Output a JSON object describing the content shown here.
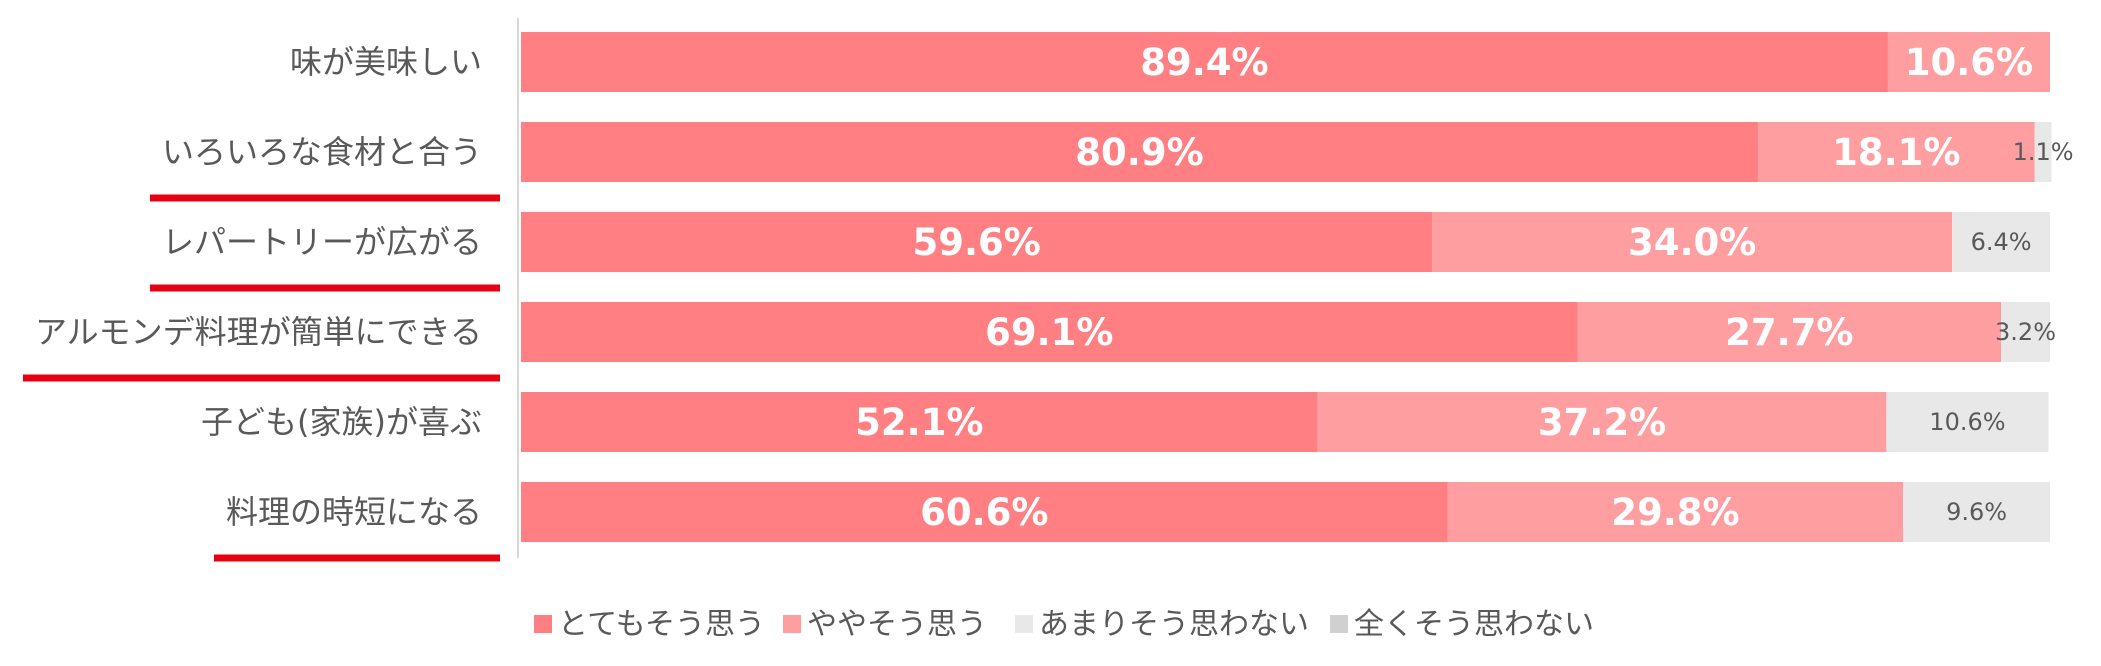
{
  "chart_data": {
    "type": "bar",
    "orientation": "horizontal",
    "stacked": true,
    "categories": [
      "味が美味しい",
      "いろいろな食材と合う",
      "レパートリーが広がる",
      "アルモンデ料理が簡単にできる",
      "子ども(家族)が喜ぶ",
      "料理の時短になる"
    ],
    "series": [
      {
        "name": "とてもそう思う",
        "color": "#ff7f82",
        "values": [
          89.4,
          80.9,
          59.6,
          69.1,
          52.1,
          60.6
        ]
      },
      {
        "name": "ややそう思う",
        "color": "#ff9ea0",
        "values": [
          10.6,
          18.1,
          34.0,
          27.7,
          37.2,
          29.8
        ]
      },
      {
        "name": "あまりそう思わない",
        "color": "#e8e8e8",
        "values": [
          0,
          1.1,
          6.4,
          3.2,
          10.6,
          9.6
        ]
      },
      {
        "name": "全くそう思わない",
        "color": "#d0d0d0",
        "values": [
          0,
          0,
          0,
          0,
          0,
          0
        ]
      }
    ],
    "data_labels": [
      [
        "89.4%",
        "10.6%",
        "",
        ""
      ],
      [
        "80.9%",
        "18.1%",
        "1.1%",
        ""
      ],
      [
        "59.6%",
        "34.0%",
        "6.4%",
        ""
      ],
      [
        "69.1%",
        "27.7%",
        "3.2%",
        ""
      ],
      [
        "52.1%",
        "37.2%",
        "10.6%",
        ""
      ],
      [
        "60.6%",
        "29.8%",
        "9.6%",
        ""
      ]
    ],
    "underlined_categories": [
      1,
      2,
      3,
      5
    ],
    "highlight_color": "#e60012",
    "xlim": [
      0,
      100
    ],
    "legend_position": "bottom",
    "grid": false
  }
}
